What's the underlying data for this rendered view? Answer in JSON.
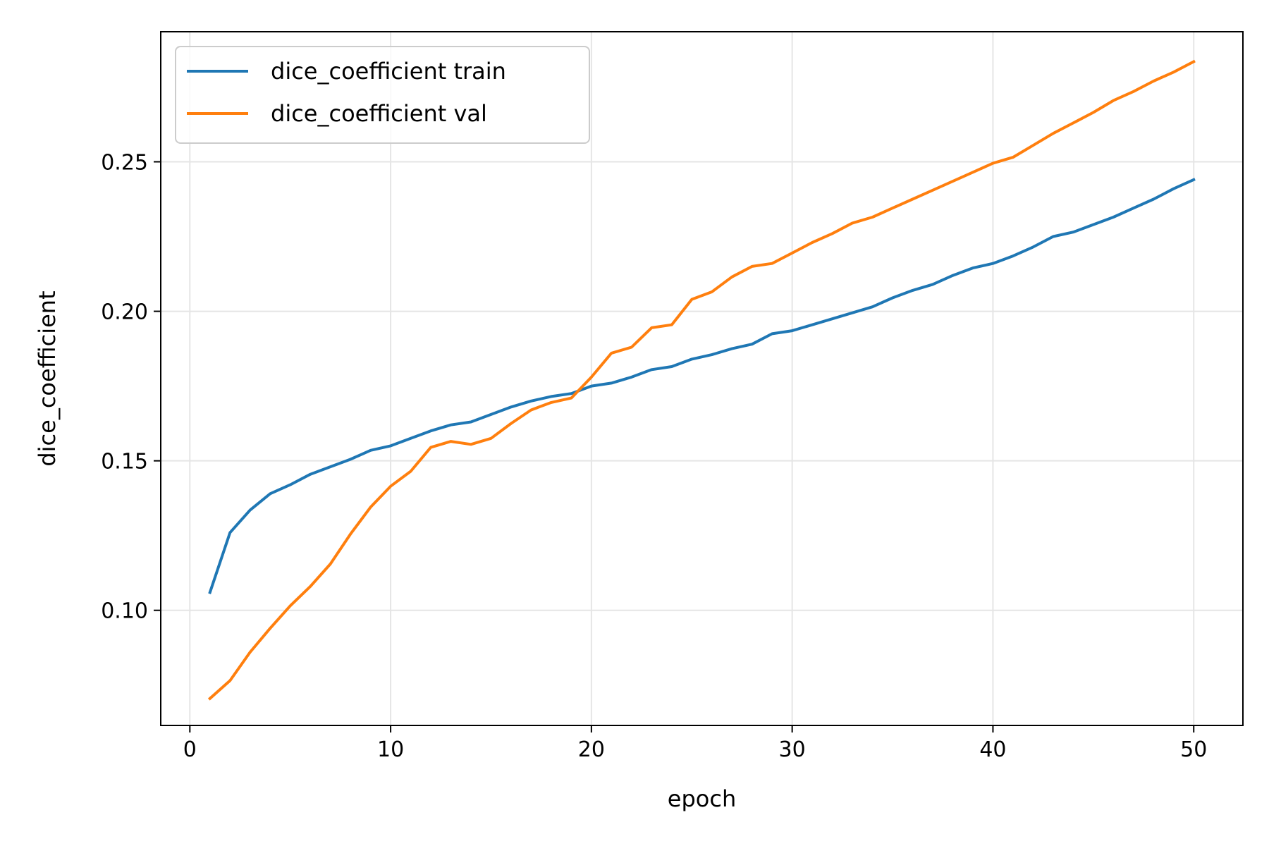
{
  "chart_data": {
    "type": "line",
    "title": "",
    "xlabel": "epoch",
    "ylabel": "dice_coefficient",
    "xlim": [
      -1.45,
      52.45
    ],
    "ylim": [
      0.0615,
      0.2935
    ],
    "xticks": [
      0,
      10,
      20,
      30,
      40,
      50
    ],
    "yticks": [
      0.1,
      0.15,
      0.2,
      0.25
    ],
    "ytick_labels": [
      "0.10",
      "0.15",
      "0.20",
      "0.25"
    ],
    "grid": true,
    "legend_position": "upper-left",
    "x": [
      1,
      2,
      3,
      4,
      5,
      6,
      7,
      8,
      9,
      10,
      11,
      12,
      13,
      14,
      15,
      16,
      17,
      18,
      19,
      20,
      21,
      22,
      23,
      24,
      25,
      26,
      27,
      28,
      29,
      30,
      31,
      32,
      33,
      34,
      35,
      36,
      37,
      38,
      39,
      40,
      41,
      42,
      43,
      44,
      45,
      46,
      47,
      48,
      49,
      50
    ],
    "series": [
      {
        "name": "dice_coefficient train",
        "color": "#1f77b4",
        "values": [
          0.106,
          0.126,
          0.1335,
          0.139,
          0.142,
          0.1455,
          0.148,
          0.1505,
          0.1535,
          0.155,
          0.1575,
          0.16,
          0.162,
          0.163,
          0.1655,
          0.168,
          0.17,
          0.1715,
          0.1725,
          0.175,
          0.176,
          0.178,
          0.1805,
          0.1815,
          0.184,
          0.1855,
          0.1875,
          0.189,
          0.1925,
          0.1935,
          0.1955,
          0.1975,
          0.1995,
          0.2015,
          0.2045,
          0.207,
          0.209,
          0.212,
          0.2145,
          0.216,
          0.2185,
          0.2215,
          0.225,
          0.2265,
          0.229,
          0.2315,
          0.2345,
          0.2375,
          0.241,
          0.244
        ]
      },
      {
        "name": "dice_coefficient val",
        "color": "#ff7f0e",
        "values": [
          0.0705,
          0.0765,
          0.086,
          0.094,
          0.1015,
          0.108,
          0.1155,
          0.1255,
          0.1345,
          0.1415,
          0.1465,
          0.1545,
          0.1565,
          0.1555,
          0.1575,
          0.1625,
          0.167,
          0.1695,
          0.171,
          0.178,
          0.186,
          0.188,
          0.1945,
          0.1955,
          0.204,
          0.2065,
          0.2115,
          0.215,
          0.216,
          0.2195,
          0.223,
          0.226,
          0.2295,
          0.2315,
          0.2345,
          0.2375,
          0.2405,
          0.2435,
          0.2465,
          0.2495,
          0.2515,
          0.2555,
          0.2595,
          0.263,
          0.2665,
          0.2705,
          0.2735,
          0.277,
          0.28,
          0.2835
        ]
      }
    ]
  }
}
